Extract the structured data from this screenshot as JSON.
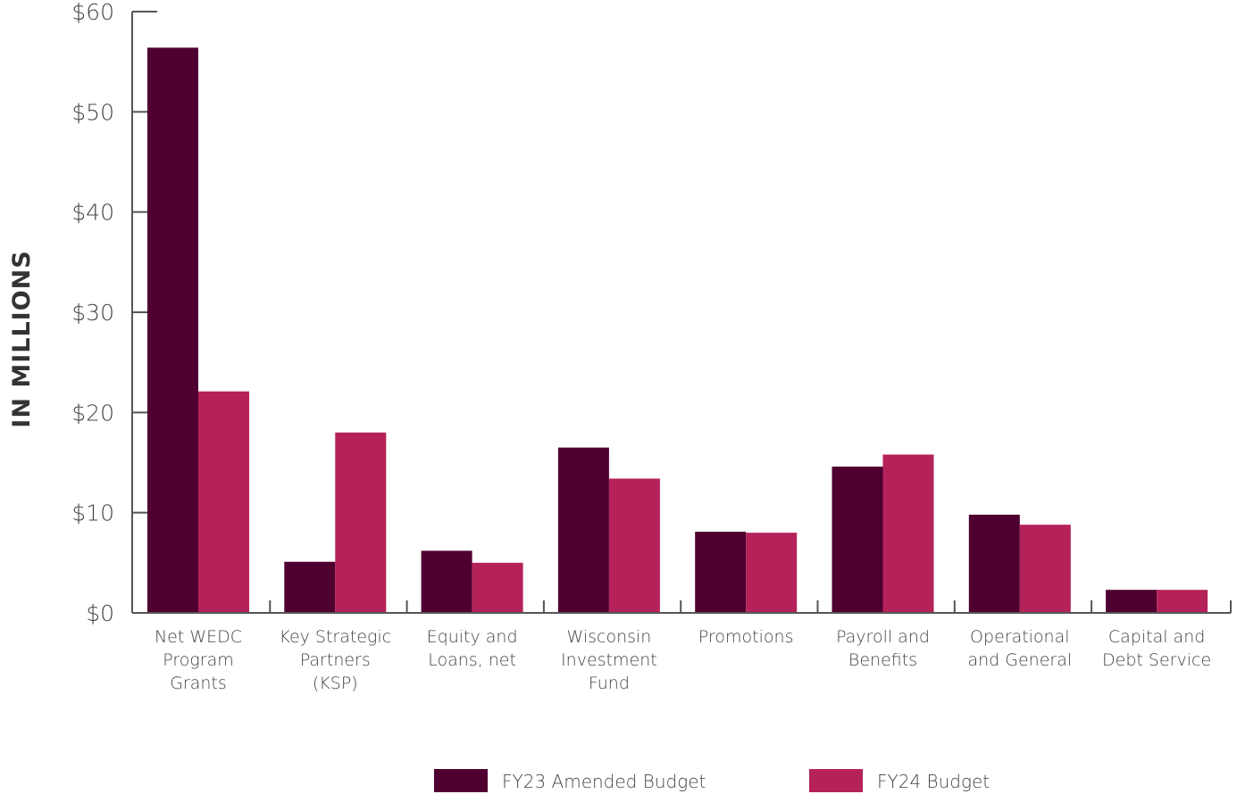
{
  "chart_data": {
    "type": "bar",
    "ylabel": "IN MILLIONS",
    "ylim": [
      0,
      60
    ],
    "yticks": [
      {
        "value": 0,
        "label": "$0"
      },
      {
        "value": 10,
        "label": "$10"
      },
      {
        "value": 20,
        "label": "$20"
      },
      {
        "value": 30,
        "label": "$30"
      },
      {
        "value": 40,
        "label": "$40"
      },
      {
        "value": 50,
        "label": "$50"
      },
      {
        "value": 60,
        "label": "$60"
      }
    ],
    "categories": [
      [
        "Net WEDC",
        "Program",
        "Grants"
      ],
      [
        "Key Strategic",
        "Partners",
        "(KSP)"
      ],
      [
        "Equity and",
        "Loans, net"
      ],
      [
        "Wisconsin",
        "Investment",
        "Fund"
      ],
      [
        "Promotions"
      ],
      [
        "Payroll and",
        "Benefits"
      ],
      [
        "Operational",
        "and General"
      ],
      [
        "Capital and",
        "Debt Service"
      ]
    ],
    "series": [
      {
        "name": "FY23 Amended Budget",
        "color": "#4f0030",
        "values": [
          56.4,
          5.1,
          6.2,
          16.5,
          8.1,
          14.6,
          9.8,
          2.3
        ]
      },
      {
        "name": "FY24 Budget",
        "color": "#b5225a",
        "values": [
          22.1,
          18.0,
          5.0,
          13.4,
          8.0,
          15.8,
          8.8,
          2.3
        ]
      }
    ],
    "legend_position": "bottom",
    "grid": false
  }
}
